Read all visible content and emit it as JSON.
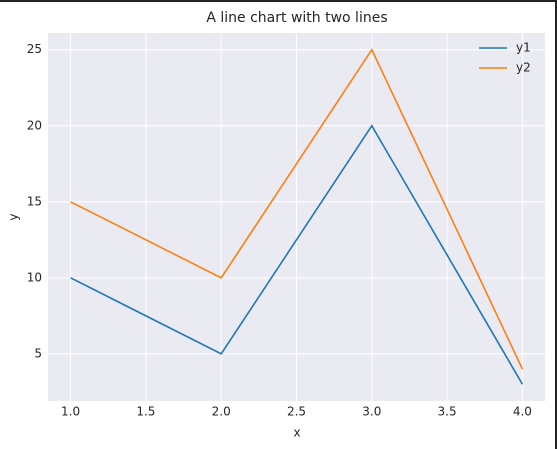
{
  "chart_data": {
    "type": "line",
    "title": "A line chart with two lines",
    "xlabel": "x",
    "ylabel": "y",
    "x": [
      1,
      2,
      3,
      4
    ],
    "series": [
      {
        "name": "y1",
        "color": "#1f77b4",
        "values": [
          10,
          5,
          20,
          3
        ]
      },
      {
        "name": "y2",
        "color": "#ff7f0e",
        "values": [
          15,
          10,
          25,
          4
        ]
      }
    ],
    "xlim": [
      0.85,
      4.15
    ],
    "xticks": [
      {
        "value": 1,
        "label": "1.0"
      },
      {
        "value": 1.5,
        "label": "1.5"
      },
      {
        "value": 2,
        "label": "2.0"
      },
      {
        "value": 2.5,
        "label": "2.5"
      },
      {
        "value": 3,
        "label": "3.0"
      },
      {
        "value": 3.5,
        "label": "3.5"
      },
      {
        "value": 4,
        "label": "4.0"
      }
    ],
    "ylim": [
      1.9,
      26.1
    ],
    "yticks": [
      5,
      10,
      15,
      20,
      25
    ],
    "grid": true,
    "legend": "upper-right"
  }
}
